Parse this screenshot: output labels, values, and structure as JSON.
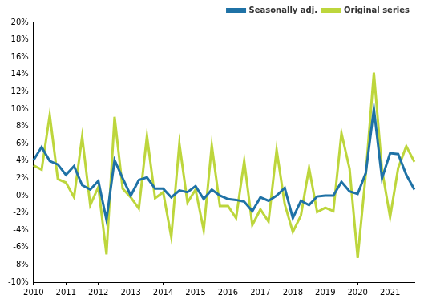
{
  "chart_data": {
    "type": "line",
    "categories": [
      "2010",
      null,
      null,
      null,
      "2011",
      null,
      null,
      null,
      "2012",
      null,
      null,
      null,
      "2013",
      null,
      null,
      null,
      "2014",
      null,
      null,
      null,
      "2015",
      null,
      null,
      null,
      "2016",
      null,
      null,
      null,
      "2017",
      null,
      null,
      null,
      "2018",
      null,
      null,
      null,
      "2019",
      null,
      null,
      null,
      "2020",
      null,
      null,
      null,
      "2021",
      null,
      null,
      null
    ],
    "series": [
      {
        "name": "Original series",
        "color": "#bdd63c",
        "values": [
          3.5,
          3.0,
          9.3,
          1.9,
          1.5,
          -0.2,
          6.8,
          -1.1,
          1.0,
          -6.8,
          9.1,
          0.8,
          -0.2,
          -1.5,
          6.9,
          -0.3,
          0.4,
          -4.8,
          6.0,
          -0.8,
          0.7,
          -4.0,
          5.8,
          -1.2,
          -1.2,
          -2.6,
          4.0,
          -3.4,
          -1.6,
          -3.0,
          5.3,
          -1.0,
          -4.2,
          -2.3,
          3.2,
          -1.9,
          -1.4,
          -1.8,
          7.2,
          3.1,
          -7.2,
          2.5,
          14.2,
          3.0,
          -2.5,
          3.2,
          5.7,
          3.9
        ]
      },
      {
        "name": "Seasonally adj.",
        "color": "#1f72a6",
        "values": [
          4.1,
          5.6,
          4.0,
          3.6,
          2.4,
          3.4,
          1.2,
          0.7,
          1.7,
          -2.8,
          4.1,
          2.0,
          0.0,
          1.8,
          2.1,
          0.8,
          0.8,
          -0.2,
          0.6,
          0.4,
          1.1,
          -0.4,
          0.7,
          0.0,
          -0.4,
          -0.5,
          -0.7,
          -1.8,
          -0.2,
          -0.6,
          0.0,
          0.9,
          -2.6,
          -0.6,
          -1.1,
          -0.1,
          0.0,
          0.0,
          1.6,
          0.5,
          0.2,
          2.6,
          10.0,
          2.0,
          4.9,
          4.8,
          2.4,
          0.7
        ]
      }
    ],
    "ylim": [
      -10,
      20
    ],
    "yticks": [
      {
        "value": -10,
        "label": "-10%"
      },
      {
        "value": -8,
        "label": "-8%"
      },
      {
        "value": -6,
        "label": "-6%"
      },
      {
        "value": -4,
        "label": "-4%"
      },
      {
        "value": -2,
        "label": "-2%"
      },
      {
        "value": 0,
        "label": "0%"
      },
      {
        "value": 2,
        "label": "2%"
      },
      {
        "value": 4,
        "label": "4%"
      },
      {
        "value": 6,
        "label": "6%"
      },
      {
        "value": 8,
        "label": "8%"
      },
      {
        "value": 10,
        "label": "10%"
      },
      {
        "value": 12,
        "label": "12%"
      },
      {
        "value": 14,
        "label": "14%"
      },
      {
        "value": 16,
        "label": "16%"
      },
      {
        "value": 18,
        "label": "18%"
      },
      {
        "value": 20,
        "label": "20%"
      }
    ],
    "grid": false,
    "legend": "top-right"
  }
}
